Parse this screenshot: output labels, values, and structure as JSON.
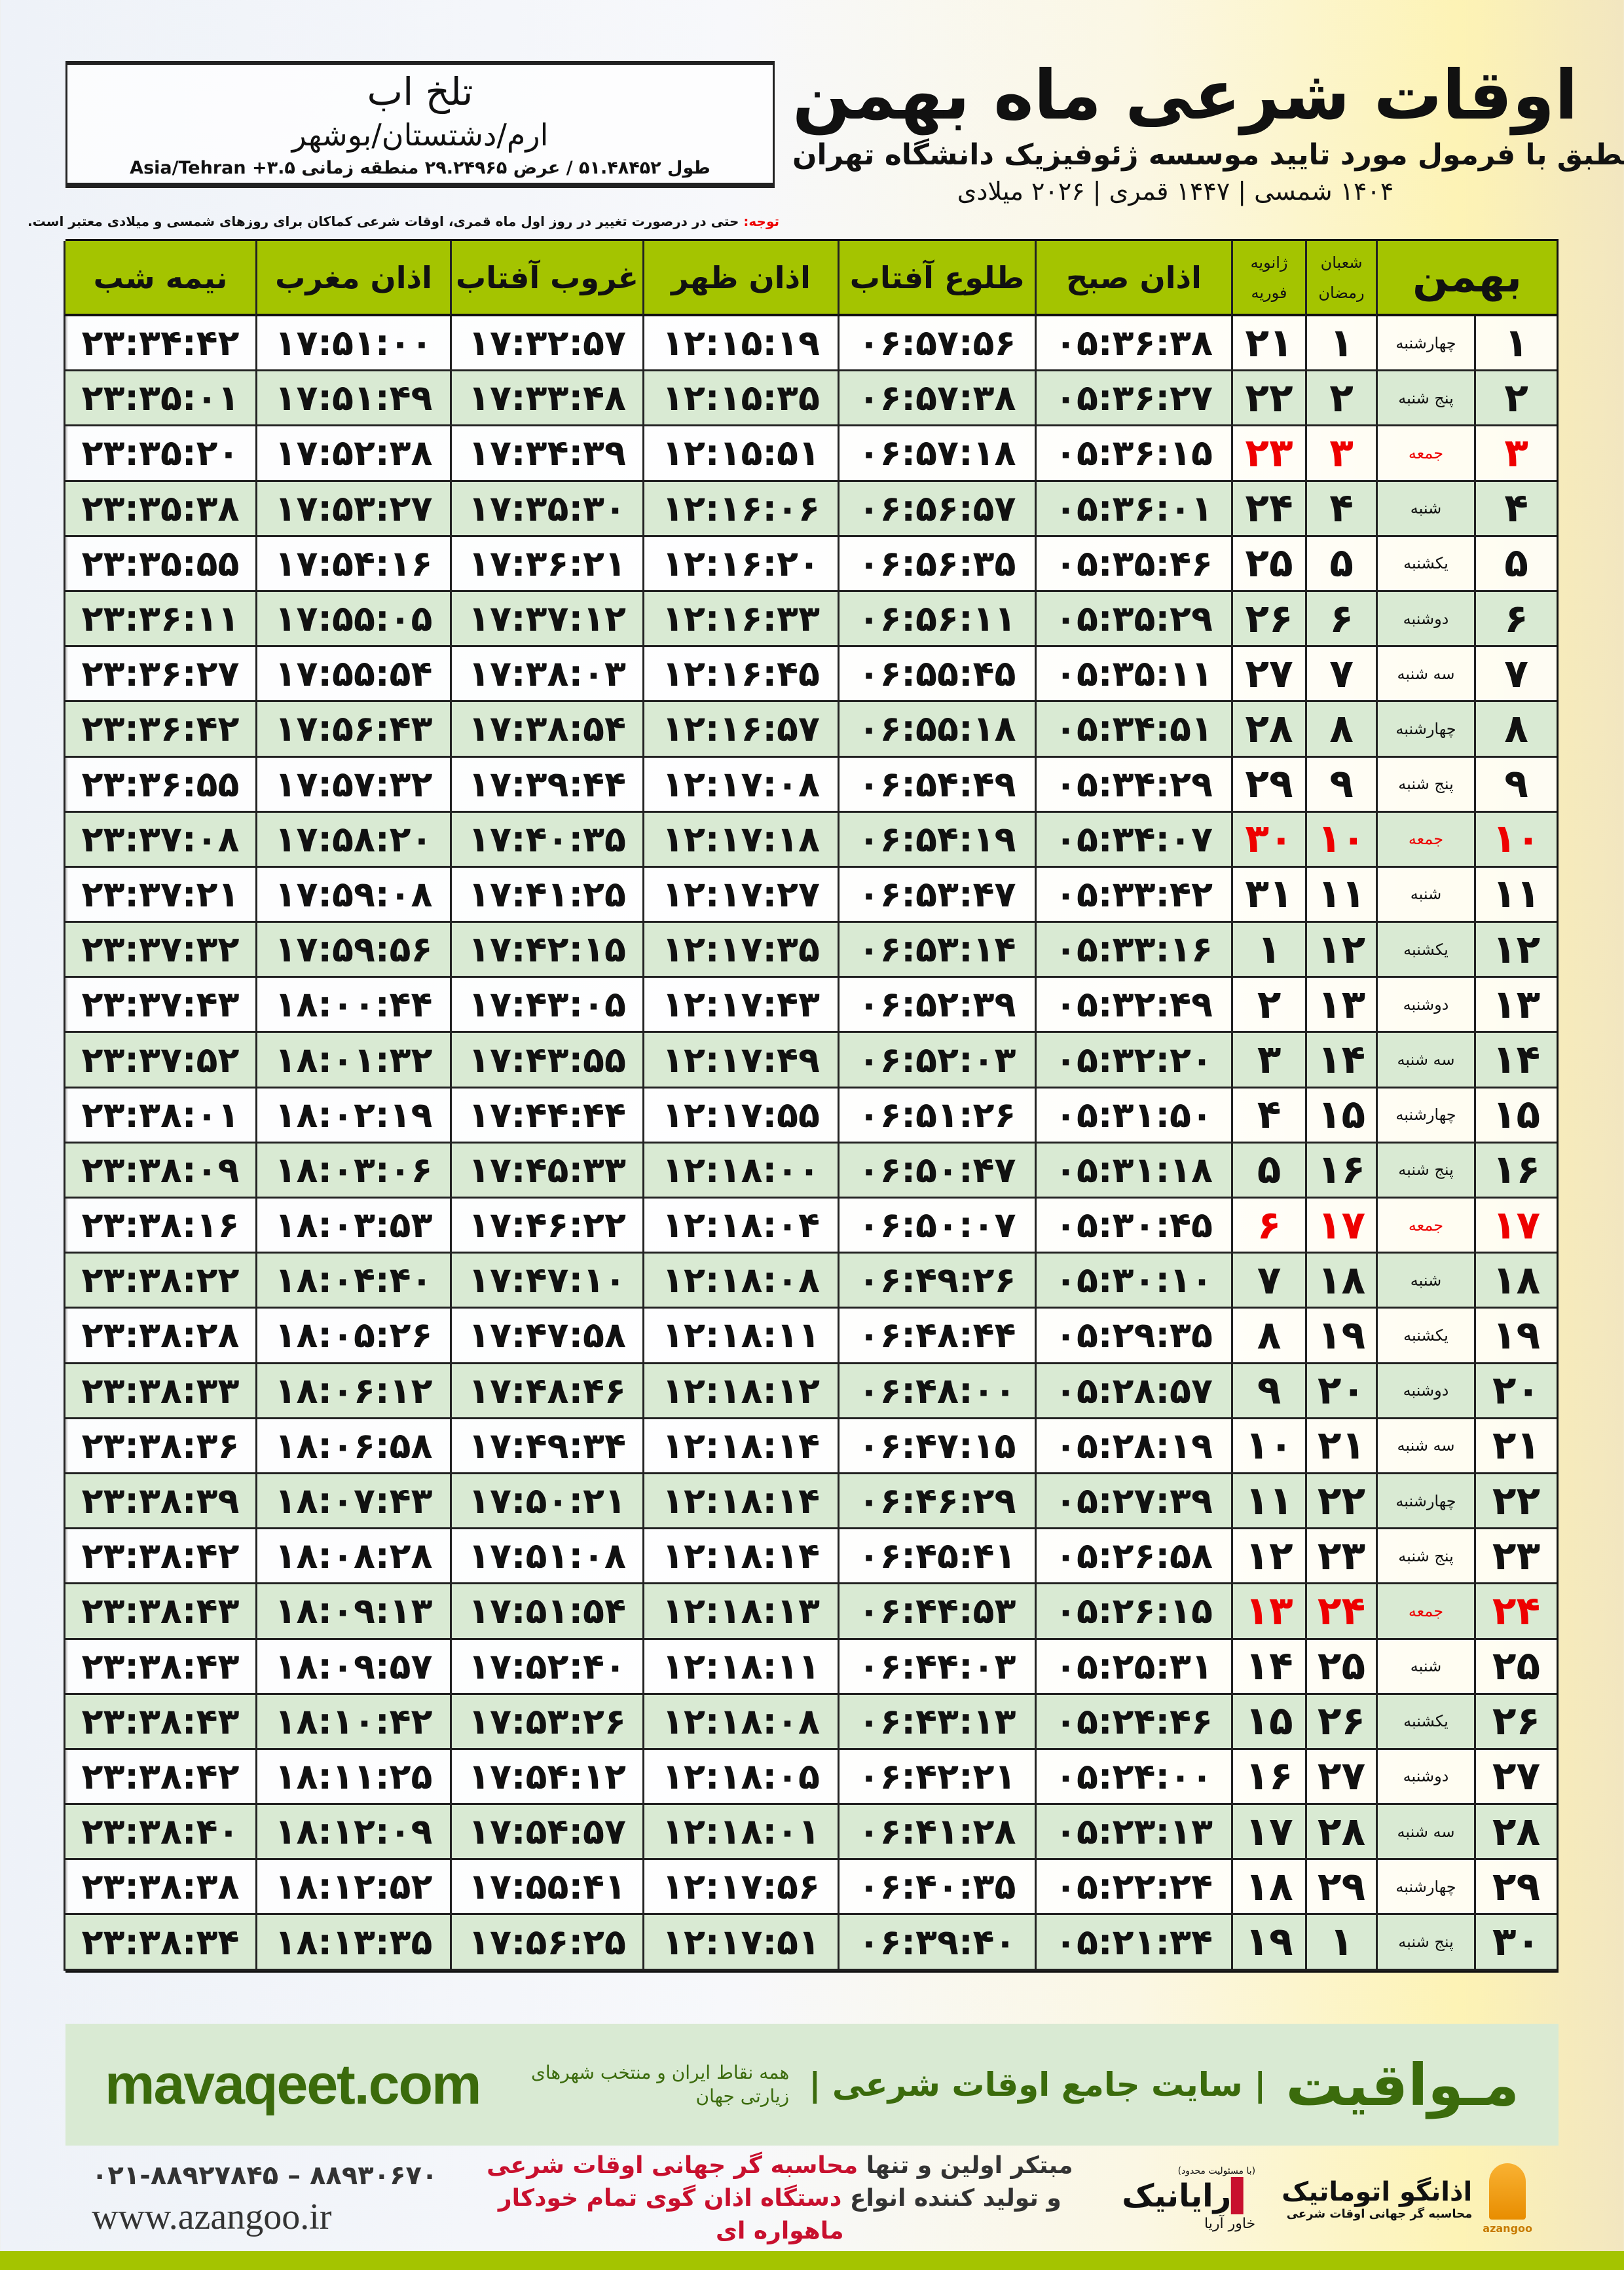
{
  "location": {
    "name": "تلخ اب",
    "path": "ارم/دشتستان/بوشهر",
    "coords": "طول ۵۱.۴۸۴۵۲ / عرض ۲۹.۲۴۹۶۵ منطقه زمانی ۳.۵+ Asia/Tehran"
  },
  "header": {
    "title": "اوقات شرعی ماه بهمن",
    "subtitle": "منطبق با فرمول مورد تایید موسسه ژئوفیزیک دانشگاه تهران",
    "dates": "۱۴۰۴ شمسی | ۱۴۴۷ قمری | ۲۰۲۶ میلادی"
  },
  "notice": {
    "label": "توجه:",
    "text": " حتی در درصورت تغییر در روز اول ماه قمری، اوقات شرعی کماکان برای روزهای شمسی و میلادی معتبر است."
  },
  "colors": {
    "header_green": "#a4c400",
    "row_green": "#d9ead3",
    "friday_red": "#e00000",
    "brand_green": "#3b6b0c"
  },
  "table": {
    "columns": {
      "month": "بهمن",
      "hijri_1": "شعبان",
      "hijri_2": "رمضان",
      "greg_1": "ژانویه",
      "greg_2": "فوریه",
      "fajr": "اذان صبح",
      "sunrise": "طلوع آفتاب",
      "dhuhr": "اذان ظهر",
      "sunset": "غروب آفتاب",
      "maghrib": "اذان مغرب",
      "midnight": "نیمه شب"
    },
    "rows": [
      {
        "day": "۱",
        "weekday": "چهارشنبه",
        "hijri": "۱",
        "greg": "۲۱",
        "fajr": "۰۵:۳۶:۳۸",
        "sunrise": "۰۶:۵۷:۵۶",
        "dhuhr": "۱۲:۱۵:۱۹",
        "sunset": "۱۷:۳۲:۵۷",
        "maghrib": "۱۷:۵۱:۰۰",
        "midnight": "۲۳:۳۴:۴۲",
        "friday": false
      },
      {
        "day": "۲",
        "weekday": "پنج شنبه",
        "hijri": "۲",
        "greg": "۲۲",
        "fajr": "۰۵:۳۶:۲۷",
        "sunrise": "۰۶:۵۷:۳۸",
        "dhuhr": "۱۲:۱۵:۳۵",
        "sunset": "۱۷:۳۳:۴۸",
        "maghrib": "۱۷:۵۱:۴۹",
        "midnight": "۲۳:۳۵:۰۱",
        "friday": false
      },
      {
        "day": "۳",
        "weekday": "جمعه",
        "hijri": "۳",
        "greg": "۲۳",
        "fajr": "۰۵:۳۶:۱۵",
        "sunrise": "۰۶:۵۷:۱۸",
        "dhuhr": "۱۲:۱۵:۵۱",
        "sunset": "۱۷:۳۴:۳۹",
        "maghrib": "۱۷:۵۲:۳۸",
        "midnight": "۲۳:۳۵:۲۰",
        "friday": true
      },
      {
        "day": "۴",
        "weekday": "شنبه",
        "hijri": "۴",
        "greg": "۲۴",
        "fajr": "۰۵:۳۶:۰۱",
        "sunrise": "۰۶:۵۶:۵۷",
        "dhuhr": "۱۲:۱۶:۰۶",
        "sunset": "۱۷:۳۵:۳۰",
        "maghrib": "۱۷:۵۳:۲۷",
        "midnight": "۲۳:۳۵:۳۸",
        "friday": false
      },
      {
        "day": "۵",
        "weekday": "یکشنبه",
        "hijri": "۵",
        "greg": "۲۵",
        "fajr": "۰۵:۳۵:۴۶",
        "sunrise": "۰۶:۵۶:۳۵",
        "dhuhr": "۱۲:۱۶:۲۰",
        "sunset": "۱۷:۳۶:۲۱",
        "maghrib": "۱۷:۵۴:۱۶",
        "midnight": "۲۳:۳۵:۵۵",
        "friday": false
      },
      {
        "day": "۶",
        "weekday": "دوشنبه",
        "hijri": "۶",
        "greg": "۲۶",
        "fajr": "۰۵:۳۵:۲۹",
        "sunrise": "۰۶:۵۶:۱۱",
        "dhuhr": "۱۲:۱۶:۳۳",
        "sunset": "۱۷:۳۷:۱۲",
        "maghrib": "۱۷:۵۵:۰۵",
        "midnight": "۲۳:۳۶:۱۱",
        "friday": false
      },
      {
        "day": "۷",
        "weekday": "سه شنبه",
        "hijri": "۷",
        "greg": "۲۷",
        "fajr": "۰۵:۳۵:۱۱",
        "sunrise": "۰۶:۵۵:۴۵",
        "dhuhr": "۱۲:۱۶:۴۵",
        "sunset": "۱۷:۳۸:۰۳",
        "maghrib": "۱۷:۵۵:۵۴",
        "midnight": "۲۳:۳۶:۲۷",
        "friday": false
      },
      {
        "day": "۸",
        "weekday": "چهارشنبه",
        "hijri": "۸",
        "greg": "۲۸",
        "fajr": "۰۵:۳۴:۵۱",
        "sunrise": "۰۶:۵۵:۱۸",
        "dhuhr": "۱۲:۱۶:۵۷",
        "sunset": "۱۷:۳۸:۵۴",
        "maghrib": "۱۷:۵۶:۴۳",
        "midnight": "۲۳:۳۶:۴۲",
        "friday": false
      },
      {
        "day": "۹",
        "weekday": "پنج شنبه",
        "hijri": "۹",
        "greg": "۲۹",
        "fajr": "۰۵:۳۴:۲۹",
        "sunrise": "۰۶:۵۴:۴۹",
        "dhuhr": "۱۲:۱۷:۰۸",
        "sunset": "۱۷:۳۹:۴۴",
        "maghrib": "۱۷:۵۷:۳۲",
        "midnight": "۲۳:۳۶:۵۵",
        "friday": false
      },
      {
        "day": "۱۰",
        "weekday": "جمعه",
        "hijri": "۱۰",
        "greg": "۳۰",
        "fajr": "۰۵:۳۴:۰۷",
        "sunrise": "۰۶:۵۴:۱۹",
        "dhuhr": "۱۲:۱۷:۱۸",
        "sunset": "۱۷:۴۰:۳۵",
        "maghrib": "۱۷:۵۸:۲۰",
        "midnight": "۲۳:۳۷:۰۸",
        "friday": true
      },
      {
        "day": "۱۱",
        "weekday": "شنبه",
        "hijri": "۱۱",
        "greg": "۳۱",
        "fajr": "۰۵:۳۳:۴۲",
        "sunrise": "۰۶:۵۳:۴۷",
        "dhuhr": "۱۲:۱۷:۲۷",
        "sunset": "۱۷:۴۱:۲۵",
        "maghrib": "۱۷:۵۹:۰۸",
        "midnight": "۲۳:۳۷:۲۱",
        "friday": false
      },
      {
        "day": "۱۲",
        "weekday": "یکشنبه",
        "hijri": "۱۲",
        "greg": "۱",
        "fajr": "۰۵:۳۳:۱۶",
        "sunrise": "۰۶:۵۳:۱۴",
        "dhuhr": "۱۲:۱۷:۳۵",
        "sunset": "۱۷:۴۲:۱۵",
        "maghrib": "۱۷:۵۹:۵۶",
        "midnight": "۲۳:۳۷:۳۲",
        "friday": false
      },
      {
        "day": "۱۳",
        "weekday": "دوشنبه",
        "hijri": "۱۳",
        "greg": "۲",
        "fajr": "۰۵:۳۲:۴۹",
        "sunrise": "۰۶:۵۲:۳۹",
        "dhuhr": "۱۲:۱۷:۴۳",
        "sunset": "۱۷:۴۳:۰۵",
        "maghrib": "۱۸:۰۰:۴۴",
        "midnight": "۲۳:۳۷:۴۳",
        "friday": false
      },
      {
        "day": "۱۴",
        "weekday": "سه شنبه",
        "hijri": "۱۴",
        "greg": "۳",
        "fajr": "۰۵:۳۲:۲۰",
        "sunrise": "۰۶:۵۲:۰۳",
        "dhuhr": "۱۲:۱۷:۴۹",
        "sunset": "۱۷:۴۳:۵۵",
        "maghrib": "۱۸:۰۱:۳۲",
        "midnight": "۲۳:۳۷:۵۲",
        "friday": false
      },
      {
        "day": "۱۵",
        "weekday": "چهارشنبه",
        "hijri": "۱۵",
        "greg": "۴",
        "fajr": "۰۵:۳۱:۵۰",
        "sunrise": "۰۶:۵۱:۲۶",
        "dhuhr": "۱۲:۱۷:۵۵",
        "sunset": "۱۷:۴۴:۴۴",
        "maghrib": "۱۸:۰۲:۱۹",
        "midnight": "۲۳:۳۸:۰۱",
        "friday": false
      },
      {
        "day": "۱۶",
        "weekday": "پنج شنبه",
        "hijri": "۱۶",
        "greg": "۵",
        "fajr": "۰۵:۳۱:۱۸",
        "sunrise": "۰۶:۵۰:۴۷",
        "dhuhr": "۱۲:۱۸:۰۰",
        "sunset": "۱۷:۴۵:۳۳",
        "maghrib": "۱۸:۰۳:۰۶",
        "midnight": "۲۳:۳۸:۰۹",
        "friday": false
      },
      {
        "day": "۱۷",
        "weekday": "جمعه",
        "hijri": "۱۷",
        "greg": "۶",
        "fajr": "۰۵:۳۰:۴۵",
        "sunrise": "۰۶:۵۰:۰۷",
        "dhuhr": "۱۲:۱۸:۰۴",
        "sunset": "۱۷:۴۶:۲۲",
        "maghrib": "۱۸:۰۳:۵۳",
        "midnight": "۲۳:۳۸:۱۶",
        "friday": true
      },
      {
        "day": "۱۸",
        "weekday": "شنبه",
        "hijri": "۱۸",
        "greg": "۷",
        "fajr": "۰۵:۳۰:۱۰",
        "sunrise": "۰۶:۴۹:۲۶",
        "dhuhr": "۱۲:۱۸:۰۸",
        "sunset": "۱۷:۴۷:۱۰",
        "maghrib": "۱۸:۰۴:۴۰",
        "midnight": "۲۳:۳۸:۲۲",
        "friday": false
      },
      {
        "day": "۱۹",
        "weekday": "یکشنبه",
        "hijri": "۱۹",
        "greg": "۸",
        "fajr": "۰۵:۲۹:۳۵",
        "sunrise": "۰۶:۴۸:۴۴",
        "dhuhr": "۱۲:۱۸:۱۱",
        "sunset": "۱۷:۴۷:۵۸",
        "maghrib": "۱۸:۰۵:۲۶",
        "midnight": "۲۳:۳۸:۲۸",
        "friday": false
      },
      {
        "day": "۲۰",
        "weekday": "دوشنبه",
        "hijri": "۲۰",
        "greg": "۹",
        "fajr": "۰۵:۲۸:۵۷",
        "sunrise": "۰۶:۴۸:۰۰",
        "dhuhr": "۱۲:۱۸:۱۲",
        "sunset": "۱۷:۴۸:۴۶",
        "maghrib": "۱۸:۰۶:۱۲",
        "midnight": "۲۳:۳۸:۳۳",
        "friday": false
      },
      {
        "day": "۲۱",
        "weekday": "سه شنبه",
        "hijri": "۲۱",
        "greg": "۱۰",
        "fajr": "۰۵:۲۸:۱۹",
        "sunrise": "۰۶:۴۷:۱۵",
        "dhuhr": "۱۲:۱۸:۱۴",
        "sunset": "۱۷:۴۹:۳۴",
        "maghrib": "۱۸:۰۶:۵۸",
        "midnight": "۲۳:۳۸:۳۶",
        "friday": false
      },
      {
        "day": "۲۲",
        "weekday": "چهارشنبه",
        "hijri": "۲۲",
        "greg": "۱۱",
        "fajr": "۰۵:۲۷:۳۹",
        "sunrise": "۰۶:۴۶:۲۹",
        "dhuhr": "۱۲:۱۸:۱۴",
        "sunset": "۱۷:۵۰:۲۱",
        "maghrib": "۱۸:۰۷:۴۳",
        "midnight": "۲۳:۳۸:۳۹",
        "friday": false
      },
      {
        "day": "۲۳",
        "weekday": "پنج شنبه",
        "hijri": "۲۳",
        "greg": "۱۲",
        "fajr": "۰۵:۲۶:۵۸",
        "sunrise": "۰۶:۴۵:۴۱",
        "dhuhr": "۱۲:۱۸:۱۴",
        "sunset": "۱۷:۵۱:۰۸",
        "maghrib": "۱۸:۰۸:۲۸",
        "midnight": "۲۳:۳۸:۴۲",
        "friday": false
      },
      {
        "day": "۲۴",
        "weekday": "جمعه",
        "hijri": "۲۴",
        "greg": "۱۳",
        "fajr": "۰۵:۲۶:۱۵",
        "sunrise": "۰۶:۴۴:۵۳",
        "dhuhr": "۱۲:۱۸:۱۳",
        "sunset": "۱۷:۵۱:۵۴",
        "maghrib": "۱۸:۰۹:۱۳",
        "midnight": "۲۳:۳۸:۴۳",
        "friday": true
      },
      {
        "day": "۲۵",
        "weekday": "شنبه",
        "hijri": "۲۵",
        "greg": "۱۴",
        "fajr": "۰۵:۲۵:۳۱",
        "sunrise": "۰۶:۴۴:۰۳",
        "dhuhr": "۱۲:۱۸:۱۱",
        "sunset": "۱۷:۵۲:۴۰",
        "maghrib": "۱۸:۰۹:۵۷",
        "midnight": "۲۳:۳۸:۴۳",
        "friday": false
      },
      {
        "day": "۲۶",
        "weekday": "یکشنبه",
        "hijri": "۲۶",
        "greg": "۱۵",
        "fajr": "۰۵:۲۴:۴۶",
        "sunrise": "۰۶:۴۳:۱۳",
        "dhuhr": "۱۲:۱۸:۰۸",
        "sunset": "۱۷:۵۳:۲۶",
        "maghrib": "۱۸:۱۰:۴۲",
        "midnight": "۲۳:۳۸:۴۳",
        "friday": false
      },
      {
        "day": "۲۷",
        "weekday": "دوشنبه",
        "hijri": "۲۷",
        "greg": "۱۶",
        "fajr": "۰۵:۲۴:۰۰",
        "sunrise": "۰۶:۴۲:۲۱",
        "dhuhr": "۱۲:۱۸:۰۵",
        "sunset": "۱۷:۵۴:۱۲",
        "maghrib": "۱۸:۱۱:۲۵",
        "midnight": "۲۳:۳۸:۴۲",
        "friday": false
      },
      {
        "day": "۲۸",
        "weekday": "سه شنبه",
        "hijri": "۲۸",
        "greg": "۱۷",
        "fajr": "۰۵:۲۳:۱۳",
        "sunrise": "۰۶:۴۱:۲۸",
        "dhuhr": "۱۲:۱۸:۰۱",
        "sunset": "۱۷:۵۴:۵۷",
        "maghrib": "۱۸:۱۲:۰۹",
        "midnight": "۲۳:۳۸:۴۰",
        "friday": false
      },
      {
        "day": "۲۹",
        "weekday": "چهارشنبه",
        "hijri": "۲۹",
        "greg": "۱۸",
        "fajr": "۰۵:۲۲:۲۴",
        "sunrise": "۰۶:۴۰:۳۵",
        "dhuhr": "۱۲:۱۷:۵۶",
        "sunset": "۱۷:۵۵:۴۱",
        "maghrib": "۱۸:۱۲:۵۲",
        "midnight": "۲۳:۳۸:۳۸",
        "friday": false
      },
      {
        "day": "۳۰",
        "weekday": "پنج شنبه",
        "hijri": "۱",
        "greg": "۱۹",
        "fajr": "۰۵:۲۱:۳۴",
        "sunrise": "۰۶:۳۹:۴۰",
        "dhuhr": "۱۲:۱۷:۵۱",
        "sunset": "۱۷:۵۶:۲۵",
        "maghrib": "۱۸:۱۳:۳۵",
        "midnight": "۲۳:۳۸:۳۴",
        "friday": false
      }
    ]
  },
  "footer": {
    "brand": "مـواقیت",
    "tagline": "سایت جامع اوقات شرعی",
    "tagline_small": "همه نقاط ایران و منتخب شهرهای زیارتی جهان",
    "site": "mavaqeet.com",
    "promo_1a": "مبتکر اولین و تنها ",
    "promo_1b": "محاسبه گر جهانی اوقات شرعی",
    "promo_2a": "و تولید کننده انواع ",
    "promo_2b": "دستگاه اذان گوی تمام خودکار ماهواره ای",
    "phones": "۰۲۱-۸۸۹۲۷۸۴۵ – ۸۸۹۳۰۶۷۰",
    "website": "www.azangoo.ir",
    "logo_azangoo_name": "اذانگو اتوماتیک",
    "logo_azangoo_sub": "محاسبه گر جهانی اوقات شرعی",
    "logo_azangoo_en": "azangoo",
    "logo_rayanik_note": "(با مسئولیت محدود)",
    "logo_rayanik_name": "رایانیک",
    "logo_rayanik_aux": "خاور آریا"
  }
}
